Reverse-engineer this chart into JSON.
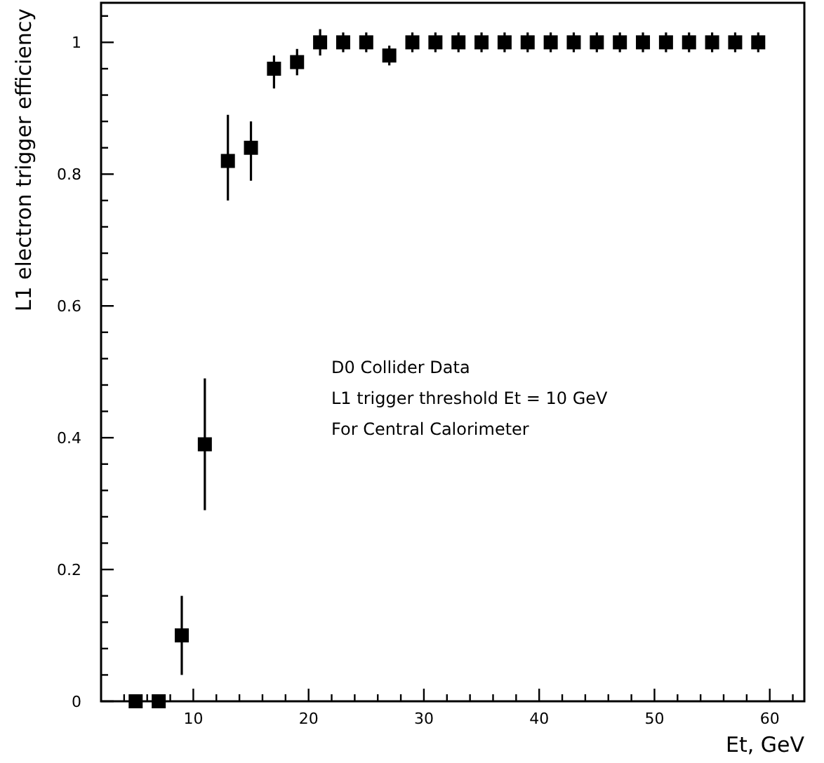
{
  "chart_data": {
    "type": "scatter",
    "xlabel": "Et, GeV",
    "ylabel": "L1 electron trigger efficiency",
    "marker": "square",
    "grid": false,
    "xlim": [
      2,
      63
    ],
    "ylim": [
      0,
      1.06
    ],
    "xticks": [
      {
        "value": 4,
        "label": null
      },
      {
        "value": 6,
        "label": null
      },
      {
        "value": 8,
        "label": null
      },
      10,
      {
        "value": 12,
        "label": null
      },
      {
        "value": 14,
        "label": null
      },
      {
        "value": 16,
        "label": null
      },
      {
        "value": 18,
        "label": null
      },
      20,
      {
        "value": 22,
        "label": null
      },
      {
        "value": 24,
        "label": null
      },
      {
        "value": 26,
        "label": null
      },
      {
        "value": 28,
        "label": null
      },
      30,
      {
        "value": 32,
        "label": null
      },
      {
        "value": 34,
        "label": null
      },
      {
        "value": 36,
        "label": null
      },
      {
        "value": 38,
        "label": null
      },
      40,
      {
        "value": 42,
        "label": null
      },
      {
        "value": 44,
        "label": null
      },
      {
        "value": 46,
        "label": null
      },
      {
        "value": 48,
        "label": null
      },
      50,
      {
        "value": 52,
        "label": null
      },
      {
        "value": 54,
        "label": null
      },
      {
        "value": 56,
        "label": null
      },
      {
        "value": 58,
        "label": null
      },
      60,
      {
        "value": 62,
        "label": null
      }
    ],
    "yticks": [
      0,
      {
        "value": 0.04,
        "label": null
      },
      {
        "value": 0.08,
        "label": null
      },
      {
        "value": 0.12,
        "label": null
      },
      {
        "value": 0.16,
        "label": null
      },
      0.2,
      {
        "value": 0.24,
        "label": null
      },
      {
        "value": 0.28,
        "label": null
      },
      {
        "value": 0.32,
        "label": null
      },
      {
        "value": 0.36,
        "label": null
      },
      0.4,
      {
        "value": 0.44,
        "label": null
      },
      {
        "value": 0.48,
        "label": null
      },
      {
        "value": 0.52,
        "label": null
      },
      {
        "value": 0.56,
        "label": null
      },
      0.6,
      {
        "value": 0.64,
        "label": null
      },
      {
        "value": 0.68,
        "label": null
      },
      {
        "value": 0.72,
        "label": null
      },
      {
        "value": 0.76,
        "label": null
      },
      0.8,
      {
        "value": 0.84,
        "label": null
      },
      {
        "value": 0.88,
        "label": null
      },
      {
        "value": 0.92,
        "label": null
      },
      {
        "value": 0.96,
        "label": null
      },
      1,
      {
        "value": 1.04,
        "label": null
      }
    ],
    "x": [
      5,
      7,
      9,
      11,
      13,
      15,
      17,
      19,
      21,
      23,
      25,
      27,
      29,
      31,
      33,
      35,
      37,
      39,
      41,
      43,
      45,
      47,
      49,
      51,
      53,
      55,
      57,
      59
    ],
    "series": [
      {
        "color": "#000000",
        "values": [
          0,
          0,
          0.1,
          0.39,
          0.82,
          0.84,
          0.96,
          0.97,
          1,
          1,
          1,
          0.98,
          1,
          1,
          1,
          1,
          1,
          1,
          1,
          1,
          1,
          1,
          1,
          1,
          1,
          1,
          1,
          1
        ],
        "errors": [
          null,
          null,
          [
            0.04,
            0.16
          ],
          [
            0.29,
            0.49
          ],
          [
            0.76,
            0.89
          ],
          [
            0.79,
            0.88
          ],
          [
            0.93,
            0.98
          ],
          [
            0.95,
            0.99
          ],
          [
            0.98,
            1.02
          ],
          [
            0.985,
            1.015
          ],
          [
            0.985,
            1.015
          ],
          [
            0.965,
            0.995
          ],
          [
            0.985,
            1.015
          ],
          [
            0.985,
            1.015
          ],
          [
            0.985,
            1.015
          ],
          [
            0.985,
            1.015
          ],
          [
            0.985,
            1.015
          ],
          [
            0.985,
            1.015
          ],
          [
            0.985,
            1.015
          ],
          [
            0.985,
            1.015
          ],
          [
            0.985,
            1.015
          ],
          [
            0.985,
            1.015
          ],
          [
            0.985,
            1.015
          ],
          [
            0.985,
            1.015
          ],
          [
            0.985,
            1.015
          ],
          [
            0.985,
            1.015
          ],
          [
            0.985,
            1.015
          ],
          [
            0.985,
            1.015
          ]
        ]
      }
    ],
    "annotations": [
      "D0 Collider Data",
      "L1 trigger threshold Et = 10 GeV",
      "For Central Calorimeter"
    ]
  }
}
